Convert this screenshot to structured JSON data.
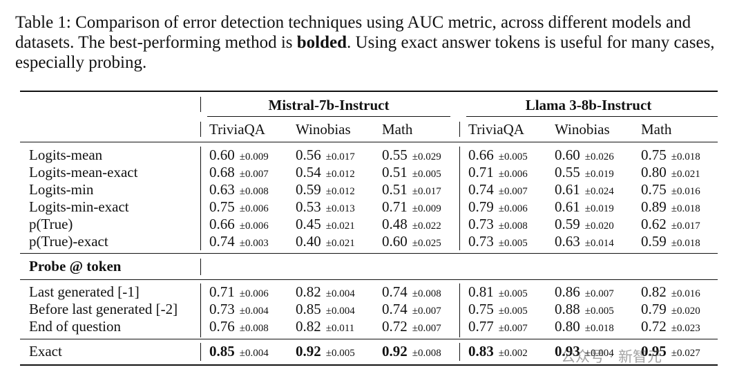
{
  "caption": {
    "prefix": "Table 1: Comparison of error detection techniques using AUC metric, across different models and datasets.  The best-performing method is ",
    "bold": "bolded",
    "suffix": ".  Using exact answer tokens is useful for many cases, especially probing."
  },
  "models": [
    "Mistral-7b-Instruct",
    "Llama 3-8b-Instruct"
  ],
  "datasets": [
    "TriviaQA",
    "Winobias",
    "Math",
    "TriviaQA",
    "Winobias",
    "Math"
  ],
  "section_label": "Probe @ token",
  "groups": [
    [
      {
        "label": "Logits-mean",
        "cells": [
          [
            "0.60",
            "±0.009"
          ],
          [
            "0.56",
            "±0.017"
          ],
          [
            "0.55",
            "±0.029"
          ],
          [
            "0.66",
            "±0.005"
          ],
          [
            "0.60",
            "±0.026"
          ],
          [
            "0.75",
            "±0.018"
          ]
        ]
      },
      {
        "label": "Logits-mean-exact",
        "cells": [
          [
            "0.68",
            "±0.007"
          ],
          [
            "0.54",
            "±0.012"
          ],
          [
            "0.51",
            "±0.005"
          ],
          [
            "0.71",
            "±0.006"
          ],
          [
            "0.55",
            "±0.019"
          ],
          [
            "0.80",
            "±0.021"
          ]
        ]
      },
      {
        "label": "Logits-min",
        "cells": [
          [
            "0.63",
            "±0.008"
          ],
          [
            "0.59",
            "±0.012"
          ],
          [
            "0.51",
            "±0.017"
          ],
          [
            "0.74",
            "±0.007"
          ],
          [
            "0.61",
            "±0.024"
          ],
          [
            "0.75",
            "±0.016"
          ]
        ]
      },
      {
        "label": "Logits-min-exact",
        "cells": [
          [
            "0.75",
            "±0.006"
          ],
          [
            "0.53",
            "±0.013"
          ],
          [
            "0.71",
            "±0.009"
          ],
          [
            "0.79",
            "±0.006"
          ],
          [
            "0.61",
            "±0.019"
          ],
          [
            "0.89",
            "±0.018"
          ]
        ]
      },
      {
        "label": "p(True)",
        "cells": [
          [
            "0.66",
            "±0.006"
          ],
          [
            "0.45",
            "±0.021"
          ],
          [
            "0.48",
            "±0.022"
          ],
          [
            "0.73",
            "±0.008"
          ],
          [
            "0.59",
            "±0.020"
          ],
          [
            "0.62",
            "±0.017"
          ]
        ]
      },
      {
        "label": "p(True)-exact",
        "cells": [
          [
            "0.74",
            "±0.003"
          ],
          [
            "0.40",
            "±0.021"
          ],
          [
            "0.60",
            "±0.025"
          ],
          [
            "0.73",
            "±0.005"
          ],
          [
            "0.63",
            "±0.014"
          ],
          [
            "0.59",
            "±0.018"
          ]
        ]
      }
    ],
    [
      {
        "label": "Last generated [-1]",
        "cells": [
          [
            "0.71",
            "±0.006"
          ],
          [
            "0.82",
            "±0.004"
          ],
          [
            "0.74",
            "±0.008"
          ],
          [
            "0.81",
            "±0.005"
          ],
          [
            "0.86",
            "±0.007"
          ],
          [
            "0.82",
            "±0.016"
          ]
        ]
      },
      {
        "label": "Before last generated [-2]",
        "cells": [
          [
            "0.73",
            "±0.004"
          ],
          [
            "0.85",
            "±0.004"
          ],
          [
            "0.74",
            "±0.007"
          ],
          [
            "0.75",
            "±0.005"
          ],
          [
            "0.88",
            "±0.005"
          ],
          [
            "0.79",
            "±0.020"
          ]
        ]
      },
      {
        "label": "End of question",
        "cells": [
          [
            "0.76",
            "±0.008"
          ],
          [
            "0.82",
            "±0.011"
          ],
          [
            "0.72",
            "±0.007"
          ],
          [
            "0.77",
            "±0.007"
          ],
          [
            "0.80",
            "±0.018"
          ],
          [
            "0.72",
            "±0.023"
          ]
        ]
      }
    ],
    [
      {
        "label": "Exact",
        "bold": true,
        "cells": [
          [
            "0.85",
            "±0.004"
          ],
          [
            "0.92",
            "±0.005"
          ],
          [
            "0.92",
            "±0.008"
          ],
          [
            "0.83",
            "±0.002"
          ],
          [
            "0.93",
            "±0.004"
          ],
          [
            "0.95",
            "±0.027"
          ]
        ]
      }
    ]
  ],
  "watermark": "公众号 · 新智元"
}
